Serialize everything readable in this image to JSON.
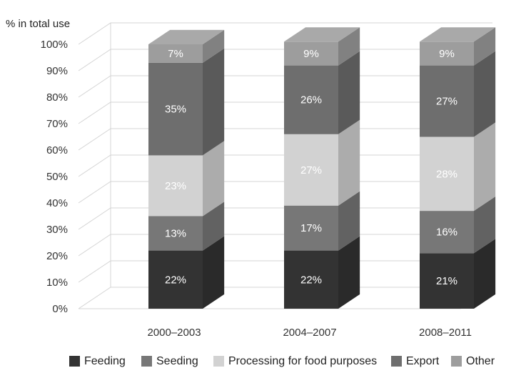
{
  "chart_data": {
    "type": "bar",
    "stacked": true,
    "three_d": true,
    "ylabel": "% in total use",
    "ylim": [
      0,
      100
    ],
    "yticks": [
      "0%",
      "10%",
      "20%",
      "30%",
      "40%",
      "50%",
      "60%",
      "70%",
      "80%",
      "90%",
      "100%"
    ],
    "categories": [
      "2000–2003",
      "2004–2007",
      "2008–2011"
    ],
    "series": [
      {
        "name": "Feeding",
        "color": "#333333",
        "text_color": "#ffffff",
        "values": [
          22,
          22,
          21
        ]
      },
      {
        "name": "Seeding",
        "color": "#777777",
        "text_color": "#ffffff",
        "values": [
          13,
          17,
          16
        ]
      },
      {
        "name": "Processing for food purposes",
        "color": "#d2d2d2",
        "text_color": "#ffffff",
        "values": [
          23,
          27,
          28
        ]
      },
      {
        "name": "Export",
        "color": "#6e6e6e",
        "text_color": "#ffffff",
        "values": [
          35,
          26,
          27
        ]
      },
      {
        "name": "Other",
        "color": "#9d9d9d",
        "text_color": "#ffffff",
        "values": [
          7,
          9,
          9
        ]
      }
    ],
    "data_labels": [
      [
        "22%",
        "22%",
        "21%"
      ],
      [
        "13%",
        "17%",
        "16%"
      ],
      [
        "23%",
        "27%",
        "28%"
      ],
      [
        "35%",
        "26%",
        "27%"
      ],
      [
        "7%",
        "9%",
        "9%"
      ]
    ],
    "grid": true,
    "legend_position": "bottom"
  }
}
